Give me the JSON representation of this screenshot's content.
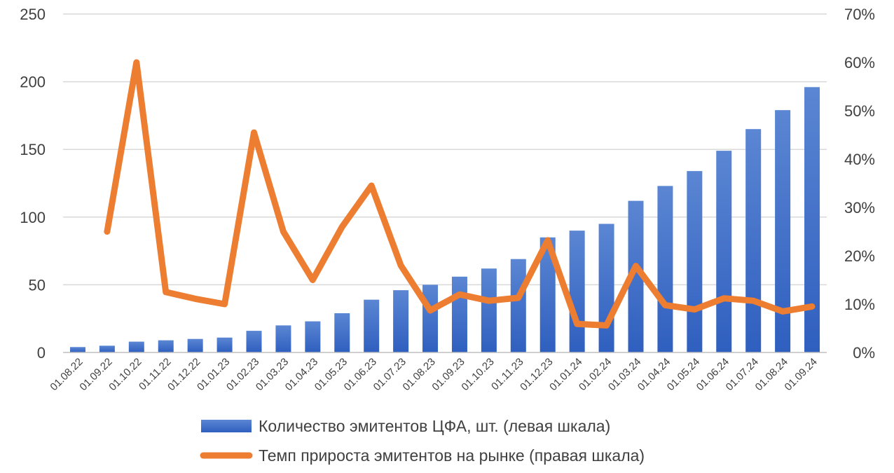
{
  "chart_data": {
    "type": "bar+line",
    "categories": [
      "01.08.22",
      "01.09.22",
      "01.10.22",
      "01.11.22",
      "01.12.22",
      "01.01.23",
      "01.02.23",
      "01.03.23",
      "01.04.23",
      "01.05.23",
      "01.06.23",
      "01.07.23",
      "01.08.23",
      "01.09.23",
      "01.10.23",
      "01.11.23",
      "01.12.23",
      "01.01.24",
      "01.02.24",
      "01.03.24",
      "01.04.24",
      "01.05.24",
      "01.06.24",
      "01.07.24",
      "01.08.24",
      "01.09.24"
    ],
    "series": [
      {
        "name": "Количество эмитентов ЦФА, шт. (левая шкала)",
        "type": "bar",
        "axis": "left",
        "color": "#4472C4",
        "values": [
          4,
          5,
          8,
          9,
          10,
          11,
          16,
          20,
          23,
          29,
          39,
          46,
          50,
          56,
          62,
          69,
          85,
          90,
          95,
          112,
          123,
          134,
          149,
          165,
          179,
          196
        ]
      },
      {
        "name": "Темп прироста эмитентов на рынке (правая шкала)",
        "type": "line",
        "axis": "right",
        "color": "#ED7D31",
        "values": [
          null,
          25,
          60,
          12.5,
          11.1,
          10,
          45.5,
          25,
          15,
          26,
          34.5,
          18,
          8.7,
          12,
          10.7,
          11.3,
          23.2,
          5.9,
          5.6,
          17.9,
          9.8,
          8.9,
          11.2,
          10.7,
          8.5,
          9.5
        ]
      }
    ],
    "ylim_left": [
      0,
      250
    ],
    "yticks_left": [
      "0",
      "50",
      "100",
      "150",
      "200",
      "250"
    ],
    "ylim_right": [
      0,
      70
    ],
    "yticks_right": [
      "0%",
      "10%",
      "20%",
      "30%",
      "40%",
      "50%",
      "60%",
      "70%"
    ],
    "legend_position": "bottom",
    "grid": true
  }
}
